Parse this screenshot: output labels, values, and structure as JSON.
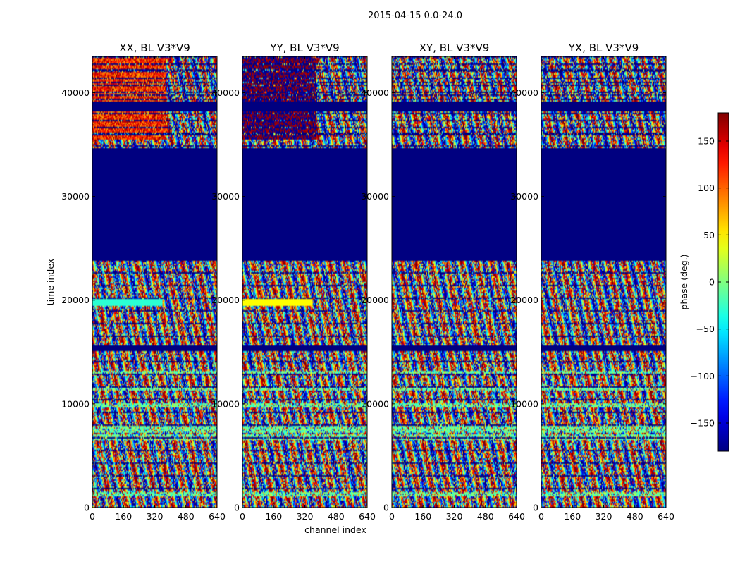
{
  "figure": {
    "suptitle": "2015-04-15 0.0-24.0"
  },
  "chart_data": {
    "type": "heatmap",
    "xlabel": "channel index",
    "ylabel": "time index",
    "xlim": [
      0,
      640
    ],
    "ylim": [
      0,
      43500
    ],
    "x_ticks": [
      0,
      160,
      320,
      480,
      640
    ],
    "y_ticks": [
      0,
      10000,
      20000,
      30000,
      40000
    ],
    "panels": [
      {
        "title": "XX, BL V3*V9",
        "pol": "XX"
      },
      {
        "title": "YY, BL V3*V9",
        "pol": "YY"
      },
      {
        "title": "XY, BL V3*V9",
        "pol": "XY"
      },
      {
        "title": "YX, BL V3*V9",
        "pol": "YX"
      }
    ],
    "flagged_time_ranges": [
      [
        23800,
        34700
      ],
      [
        15100,
        15600
      ],
      [
        38200,
        39200
      ]
    ],
    "colorbar": {
      "label": "phase (deg.)",
      "range": [
        -180,
        180
      ],
      "ticks": [
        -150,
        -100,
        -50,
        0,
        50,
        100,
        150
      ],
      "colormap": "jet"
    }
  }
}
